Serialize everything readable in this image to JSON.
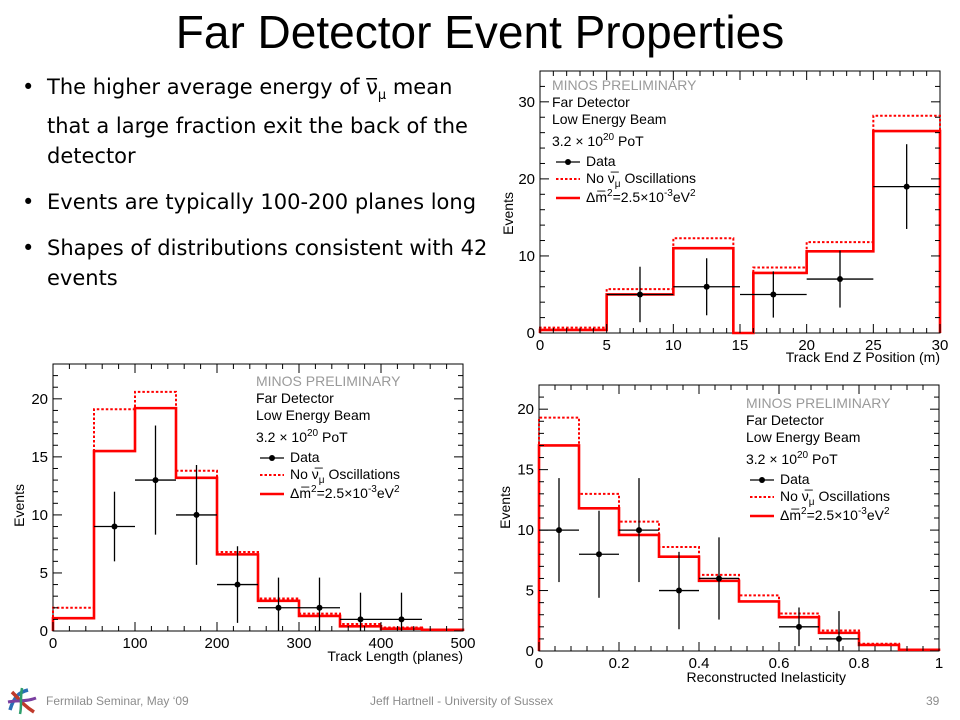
{
  "slide": {
    "title": "Far Detector Event Properties",
    "bullets": [
      {
        "text": "The higher average energy of ν̅",
        "sub": "μ",
        "text2": " mean that a large fraction exit the back of the detector"
      },
      {
        "text": "Events are typically 100-200 planes long",
        "sub": "",
        "text2": ""
      },
      {
        "text": "Shapes of distributions consistent with 42 events",
        "sub": "",
        "text2": ""
      }
    ],
    "footer": {
      "left": "Fermilab Seminar, May ‘09",
      "center": "Jeff Hartnell - University of Sussex",
      "page": "39"
    },
    "logo_icon": "minos-logo-icon"
  },
  "legend": {
    "prelim": "MINOS PRELIMINARY",
    "detector": "Far Detector",
    "beam": "Low Energy Beam",
    "pot_text": "3.2 × 10",
    "pot_exp": "20",
    "pot_unit": " PoT",
    "data": "Data",
    "no_osc_prefix": "No ν̅",
    "no_osc_sub": "μ",
    "no_osc_suffix": " Oscillations",
    "osc_prefix": "Δm̅",
    "osc_exp": "2",
    "osc_mid": "=2.5×10",
    "osc_exp2": "-3",
    "osc_unit": "eV",
    "osc_exp3": "2"
  },
  "colors": {
    "pred": "#ff0000",
    "data": "#000000",
    "prelim": "#9a9a9a"
  },
  "chart_data": [
    {
      "id": "trackend",
      "type": "histogram",
      "xlabel": "Track End Z Position (m)",
      "ylabel": "Events",
      "xlim": [
        0,
        30
      ],
      "ylim": [
        0,
        34
      ],
      "xticks": [
        0,
        5,
        10,
        15,
        20,
        25,
        30
      ],
      "yticks": [
        0,
        10,
        20,
        30
      ],
      "bin_edges": [
        0,
        5,
        10,
        14.5,
        16,
        20,
        25,
        30
      ],
      "no_oscillation": [
        0.7,
        5.7,
        12.3,
        0,
        8.5,
        11.8,
        28.2
      ],
      "oscillation": [
        0.4,
        5.0,
        11.0,
        0,
        7.8,
        10.6,
        26.2
      ],
      "data": [
        {
          "x": 7.5,
          "y": 5,
          "xerr": 2.5,
          "yerr": 3.6
        },
        {
          "x": 12.5,
          "y": 6,
          "xerr": 2.5,
          "yerr": 3.7
        },
        {
          "x": 17.5,
          "y": 5,
          "xerr": 2.5,
          "yerr": 3.0
        },
        {
          "x": 22.5,
          "y": 7,
          "xerr": 2.5,
          "yerr": 3.7
        },
        {
          "x": 27.5,
          "y": 19,
          "xerr": 2.5,
          "yerr": 5.5
        }
      ]
    },
    {
      "id": "tracklength",
      "type": "histogram",
      "xlabel": "Track Length (planes)",
      "ylabel": "Events",
      "xlim": [
        0,
        500
      ],
      "ylim": [
        0,
        23
      ],
      "xticks": [
        0,
        100,
        200,
        300,
        400,
        500
      ],
      "yticks": [
        0,
        5,
        10,
        15,
        20
      ],
      "bin_edges": [
        0,
        50,
        100,
        150,
        200,
        250,
        300,
        350,
        400,
        450,
        500
      ],
      "no_oscillation": [
        2.0,
        19.1,
        20.6,
        13.8,
        6.8,
        2.8,
        1.5,
        0.6,
        0.3,
        0.1
      ],
      "oscillation": [
        1.1,
        15.5,
        19.2,
        13.2,
        6.6,
        2.6,
        1.3,
        0.4,
        0.2,
        0.1
      ],
      "data": [
        {
          "x": 75,
          "y": 9,
          "xerr": 25,
          "yerr": 3.0
        },
        {
          "x": 125,
          "y": 13,
          "xerr": 25,
          "yerr": 4.7
        },
        {
          "x": 175,
          "y": 10,
          "xerr": 25,
          "yerr": 4.3
        },
        {
          "x": 225,
          "y": 4,
          "xerr": 25,
          "yerr": 3.3
        },
        {
          "x": 275,
          "y": 2,
          "xerr": 25,
          "yerr": 2.6
        },
        {
          "x": 325,
          "y": 2,
          "xerr": 25,
          "yerr": 2.6
        },
        {
          "x": 375,
          "y": 1,
          "xerr": 25,
          "yerr": 2.3
        },
        {
          "x": 425,
          "y": 1,
          "xerr": 25,
          "yerr": 2.3
        }
      ]
    },
    {
      "id": "inelasticity",
      "type": "histogram",
      "xlabel": "Reconstructed Inelasticity",
      "ylabel": "Events",
      "xlim": [
        0,
        1
      ],
      "ylim": [
        0,
        22
      ],
      "xticks": [
        0,
        0.2,
        0.4,
        0.6,
        0.8,
        1
      ],
      "yticks": [
        0,
        5,
        10,
        15,
        20
      ],
      "bin_edges": [
        0,
        0.1,
        0.2,
        0.3,
        0.4,
        0.5,
        0.6,
        0.7,
        0.8,
        0.9,
        1.0
      ],
      "no_oscillation": [
        19.3,
        13.0,
        10.7,
        8.6,
        6.3,
        4.6,
        3.1,
        1.7,
        0.6,
        0.1
      ],
      "oscillation": [
        17.0,
        11.8,
        9.6,
        7.8,
        5.8,
        4.1,
        2.8,
        1.5,
        0.5,
        0.1
      ],
      "data": [
        {
          "x": 0.05,
          "y": 10,
          "xerr": 0.05,
          "yerr": 4.3
        },
        {
          "x": 0.15,
          "y": 8,
          "xerr": 0.05,
          "yerr": 3.6
        },
        {
          "x": 0.25,
          "y": 10,
          "xerr": 0.05,
          "yerr": 4.3
        },
        {
          "x": 0.35,
          "y": 5,
          "xerr": 0.05,
          "yerr": 3.2
        },
        {
          "x": 0.45,
          "y": 6,
          "xerr": 0.05,
          "yerr": 3.4
        },
        {
          "x": 0.65,
          "y": 2,
          "xerr": 0.05,
          "yerr": 1.6
        },
        {
          "x": 0.75,
          "y": 1,
          "xerr": 0.05,
          "yerr": 2.3
        }
      ]
    }
  ]
}
